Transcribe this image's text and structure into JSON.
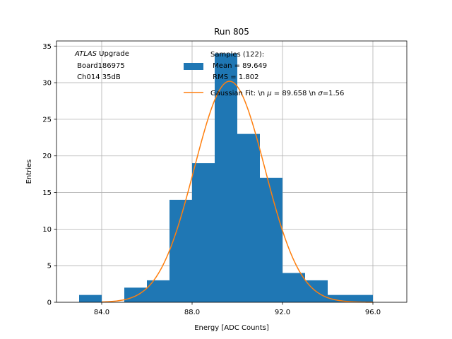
{
  "chart_data": {
    "type": "bar",
    "title": "Run 805",
    "xlabel": "Energy [ADC Counts]",
    "ylabel": "Entries",
    "xlim": [
      82.0,
      97.5
    ],
    "ylim": [
      0,
      35.7
    ],
    "xticks": [
      84,
      88,
      92,
      96
    ],
    "xtick_labels": [
      "84.0",
      "88.0",
      "92.0",
      "96.0"
    ],
    "yticks": [
      0,
      5,
      10,
      15,
      20,
      25,
      30,
      35
    ],
    "ytick_labels": [
      "0",
      "5",
      "10",
      "15",
      "20",
      "25",
      "30",
      "35"
    ],
    "grid": true,
    "bin_edges": [
      83,
      84,
      85,
      86,
      87,
      88,
      89,
      90,
      91,
      92,
      93,
      94,
      95,
      96
    ],
    "values": [
      1,
      0,
      2,
      3,
      14,
      19,
      34,
      23,
      17,
      4,
      3,
      1,
      1
    ],
    "bar_color": "#1f77b4",
    "fit": {
      "type": "gaussian",
      "mu": 89.658,
      "sigma": 1.56,
      "amplitude": 30.2,
      "x_range": [
        84,
        96
      ],
      "color": "#ff7f0e"
    },
    "annotation": {
      "line1_italic": "ATLAS",
      "line1_rest": " Upgrade",
      "line2": " Board186975",
      "line3": " Ch014 35dB"
    },
    "legend": {
      "placement": "top-right",
      "hist_label_lines": [
        "Samples (122):",
        " Mean = 89.649",
        " RMS = 1.802"
      ],
      "fit_label_prefix": "Gaussian Fit: \\n ",
      "fit_mu_symbol": "μ",
      "fit_mu_value": " = 89.658 \\n ",
      "fit_sigma_symbol": "σ",
      "fit_sigma_value": "=1.56"
    }
  }
}
